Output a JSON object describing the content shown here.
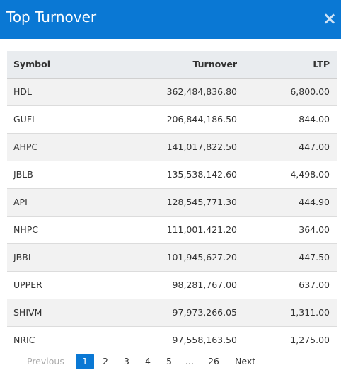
{
  "header": {
    "title": "Top Turnover",
    "close": "×"
  },
  "table": {
    "columns": [
      "Symbol",
      "Turnover",
      "LTP"
    ],
    "rows": [
      [
        "HDL",
        "362,484,836.80",
        "6,800.00"
      ],
      [
        "GUFL",
        "206,844,186.50",
        "844.00"
      ],
      [
        "AHPC",
        "141,017,822.50",
        "447.00"
      ],
      [
        "JBLB",
        "135,538,142.60",
        "4,498.00"
      ],
      [
        "API",
        "128,545,771.30",
        "444.90"
      ],
      [
        "NHPC",
        "111,001,421.20",
        "364.00"
      ],
      [
        "JBBL",
        "101,945,627.20",
        "447.50"
      ],
      [
        "UPPER",
        "98,281,767.00",
        "637.00"
      ],
      [
        "SHIVM",
        "97,973,266.05",
        "1,311.00"
      ],
      [
        "NRIC",
        "97,558,163.50",
        "1,275.00"
      ]
    ]
  },
  "pagination": {
    "previous": "Previous",
    "pages": [
      "1",
      "2",
      "3",
      "4",
      "5",
      "...",
      "26"
    ],
    "next": "Next"
  }
}
